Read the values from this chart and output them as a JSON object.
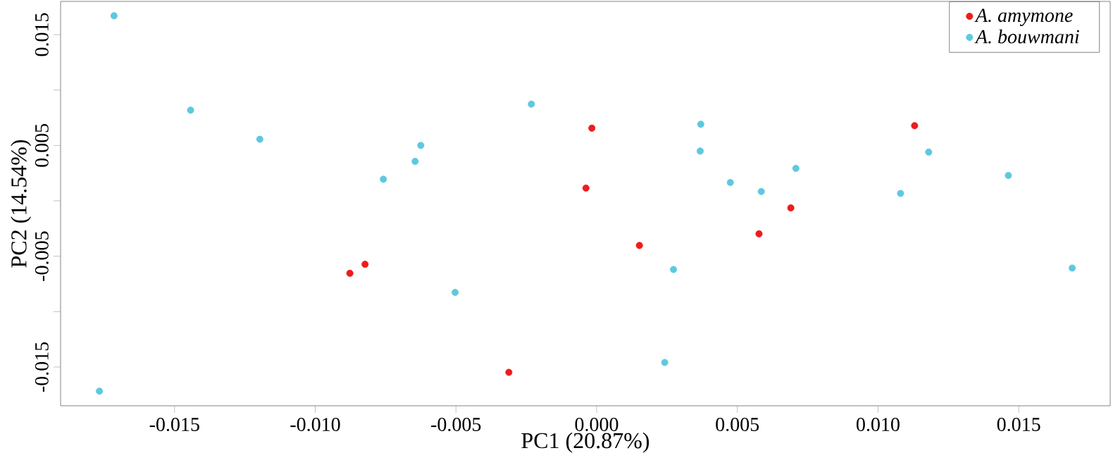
{
  "chart_data": {
    "type": "scatter",
    "xlabel": "PC1 (20.87%)",
    "ylabel": "PC2 (14.54%)",
    "xlim": [
      -0.01905,
      0.01825
    ],
    "ylim": [
      -0.0185,
      0.018
    ],
    "xticks": [
      -0.015,
      {
        "value": -0.01,
        "label": "-0.010"
      },
      -0.005,
      {
        "value": 0,
        "label": "0.000"
      },
      0.005,
      {
        "value": 0.01,
        "label": "0.010"
      },
      0.015
    ],
    "yticks": [
      -0.015,
      {
        "value": -0.01,
        "label": null
      },
      -0.005,
      {
        "value": 0,
        "label": null
      },
      0.005,
      {
        "value": 0.01,
        "label": null
      },
      0.015
    ],
    "grid": false,
    "legend": "top right",
    "marker": "circle",
    "series": [
      {
        "name": "A. amymone",
        "color": "#ee1c1c",
        "x": [
          -0.00877,
          -0.00823,
          -0.00312,
          -0.00017,
          -0.00038,
          0.00152,
          0.00577,
          0.0069,
          0.0113
        ],
        "values": [
          -0.00654,
          -0.00573,
          -0.01548,
          0.00656,
          0.00115,
          -0.00403,
          -0.00298,
          -0.00064,
          0.00678
        ]
      },
      {
        "name": "A. bouwmani",
        "color": "#5ec8e0",
        "x": [
          -0.01715,
          -0.01443,
          -0.01197,
          -0.00625,
          -0.00645,
          -0.00758,
          -0.00503,
          -0.01767,
          -0.00232,
          0.0037,
          0.00368,
          0.00475,
          0.00585,
          0.00708,
          0.00273,
          0.00242,
          0.0108,
          0.0118,
          0.01463,
          0.0169
        ],
        "values": [
          0.0167,
          0.00818,
          0.00556,
          0.005,
          0.00356,
          0.00195,
          -0.00827,
          -0.01718,
          0.00873,
          0.00691,
          0.00449,
          0.00165,
          0.00084,
          0.00293,
          -0.0062,
          -0.01459,
          0.00067,
          0.0044,
          0.00229,
          -0.00607
        ]
      }
    ]
  }
}
